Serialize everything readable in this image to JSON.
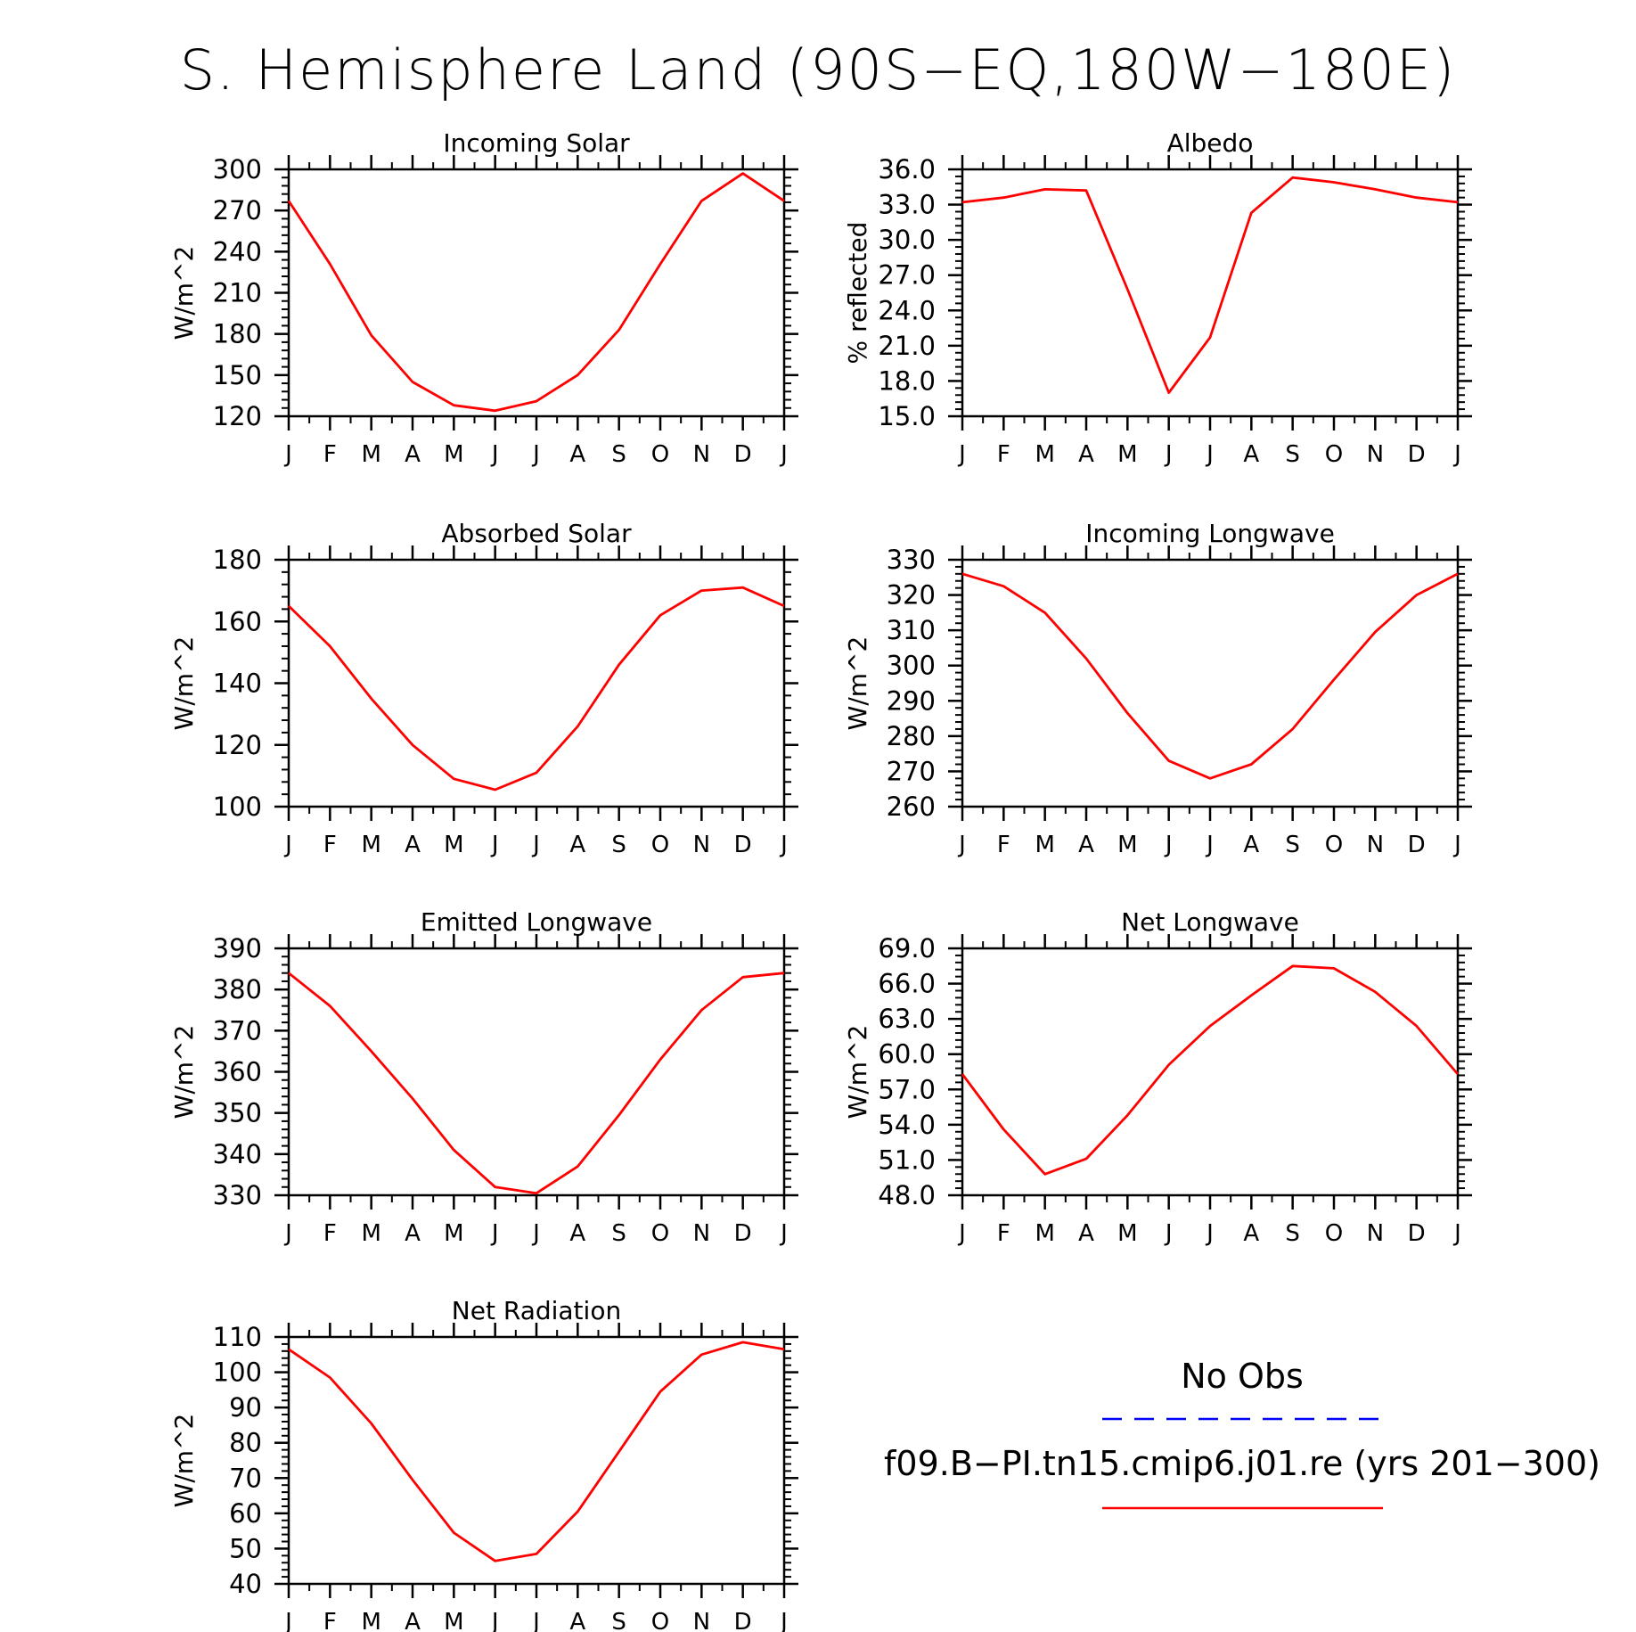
{
  "title": "S. Hemisphere Land (90S−EQ,180W−180E)",
  "colors": {
    "model": "#ff0000",
    "obs": "#0000ff",
    "axis": "#000000"
  },
  "legend": {
    "obs_label": "No Obs",
    "model_label": "f09.B−PI.tn15.cmip6.j01.re (yrs 201−300)"
  },
  "chart_data": [
    {
      "type": "line",
      "title": "Incoming Solar",
      "ylabel": "W/m^2",
      "x": [
        "J",
        "F",
        "M",
        "A",
        "M",
        "J",
        "J",
        "A",
        "S",
        "O",
        "N",
        "D",
        "J"
      ],
      "ylim": [
        120,
        300
      ],
      "yticks": [
        "120",
        "150",
        "180",
        "210",
        "240",
        "270",
        "300"
      ],
      "series": [
        {
          "values": [
            277,
            231,
            179,
            145,
            128,
            124,
            131,
            150,
            183,
            231,
            277,
            297,
            277
          ]
        }
      ]
    },
    {
      "type": "line",
      "title": "Albedo",
      "ylabel": "% reflected",
      "x": [
        "J",
        "F",
        "M",
        "A",
        "M",
        "J",
        "J",
        "A",
        "S",
        "O",
        "N",
        "D",
        "J"
      ],
      "ylim": [
        15.0,
        36.0
      ],
      "yticks": [
        "15.0",
        "18.0",
        "21.0",
        "24.0",
        "27.0",
        "30.0",
        "33.0",
        "36.0"
      ],
      "series": [
        {
          "values": [
            33.2,
            33.6,
            34.3,
            34.2,
            25.8,
            17.0,
            21.7,
            32.3,
            35.3,
            34.9,
            34.3,
            33.6,
            33.2
          ]
        }
      ]
    },
    {
      "type": "line",
      "title": "Absorbed Solar",
      "ylabel": "W/m^2",
      "x": [
        "J",
        "F",
        "M",
        "A",
        "M",
        "J",
        "J",
        "A",
        "S",
        "O",
        "N",
        "D",
        "J"
      ],
      "ylim": [
        100,
        180
      ],
      "yticks": [
        "100",
        "120",
        "140",
        "160",
        "180"
      ],
      "series": [
        {
          "values": [
            165,
            152,
            135,
            120,
            109,
            105.5,
            111,
            126,
            146,
            162,
            170,
            171,
            165
          ]
        }
      ]
    },
    {
      "type": "line",
      "title": "Incoming Longwave",
      "ylabel": "W/m^2",
      "x": [
        "J",
        "F",
        "M",
        "A",
        "M",
        "J",
        "J",
        "A",
        "S",
        "O",
        "N",
        "D",
        "J"
      ],
      "ylim": [
        260,
        330
      ],
      "yticks": [
        "260",
        "270",
        "280",
        "290",
        "300",
        "310",
        "320",
        "330"
      ],
      "series": [
        {
          "values": [
            326,
            322.5,
            315,
            302,
            286.5,
            273,
            268,
            272,
            282,
            296,
            309.5,
            320,
            326
          ]
        }
      ]
    },
    {
      "type": "line",
      "title": "Emitted Longwave",
      "ylabel": "W/m^2",
      "x": [
        "J",
        "F",
        "M",
        "A",
        "M",
        "J",
        "J",
        "A",
        "S",
        "O",
        "N",
        "D",
        "J"
      ],
      "ylim": [
        330,
        390
      ],
      "yticks": [
        "330",
        "340",
        "350",
        "360",
        "370",
        "380",
        "390"
      ],
      "series": [
        {
          "values": [
            384,
            376,
            365,
            353.5,
            341,
            332,
            330.5,
            337,
            349.5,
            363,
            375,
            383,
            384
          ]
        }
      ]
    },
    {
      "type": "line",
      "title": "Net Longwave",
      "ylabel": "W/m^2",
      "x": [
        "J",
        "F",
        "M",
        "A",
        "M",
        "J",
        "J",
        "A",
        "S",
        "O",
        "N",
        "D",
        "J"
      ],
      "ylim": [
        48.0,
        69.0
      ],
      "yticks": [
        "48.0",
        "51.0",
        "54.0",
        "57.0",
        "60.0",
        "63.0",
        "66.0",
        "69.0"
      ],
      "series": [
        {
          "values": [
            58.3,
            53.6,
            49.8,
            51.1,
            54.8,
            59.1,
            62.4,
            65.0,
            67.5,
            67.3,
            65.3,
            62.4,
            58.3
          ]
        }
      ]
    },
    {
      "type": "line",
      "title": "Net Radiation",
      "ylabel": "W/m^2",
      "x": [
        "J",
        "F",
        "M",
        "A",
        "M",
        "J",
        "J",
        "A",
        "S",
        "O",
        "N",
        "D",
        "J"
      ],
      "ylim": [
        40,
        110
      ],
      "yticks": [
        "40",
        "50",
        "60",
        "70",
        "80",
        "90",
        "100",
        "110"
      ],
      "series": [
        {
          "values": [
            106.5,
            98.5,
            85.5,
            69.5,
            54.5,
            46.5,
            48.5,
            60.5,
            77.5,
            94.5,
            105,
            108.5,
            106.5
          ]
        }
      ]
    }
  ]
}
